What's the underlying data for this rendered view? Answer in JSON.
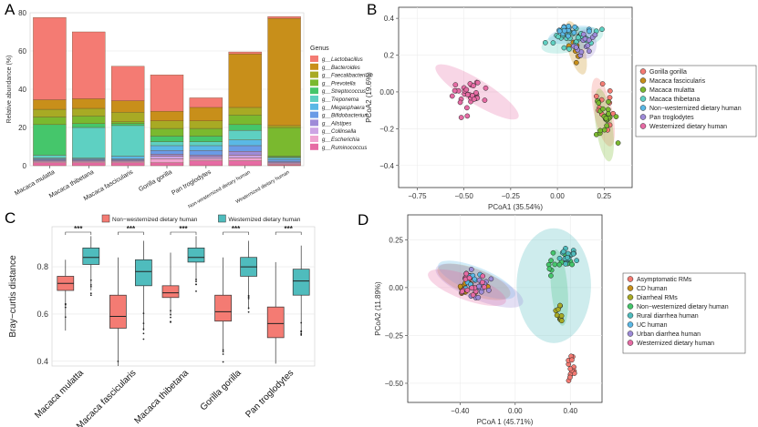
{
  "chart_data": [
    {
      "panel": "A",
      "type": "bar",
      "stacked": true,
      "ylabel": "Relative abundance (%)",
      "xlabel": "",
      "yticks": [
        "0",
        "20",
        "40",
        "60",
        "80"
      ],
      "ylim": [
        0,
        80
      ],
      "legend_title": "Genus",
      "legend_position": "right",
      "categories": [
        "Macaca mulatta",
        "Macaca thibetana",
        "Macaca fascicularis",
        "Gorilla gorilla",
        "Pan troglodytes",
        "Non-westernized dietary human",
        "Westernized dietary human"
      ],
      "series": [
        {
          "name": "g__Ruminococcus",
          "color": "#e66ba4",
          "values": [
            1.5,
            1.5,
            1.5,
            1.5,
            2.5,
            2.5,
            0.5
          ]
        },
        {
          "name": "g__Escherichia",
          "color": "#f0a3cf",
          "values": [
            0.5,
            0.5,
            0.5,
            2,
            1,
            1.5,
            0.5
          ]
        },
        {
          "name": "g__Collinsella",
          "color": "#cda4e4",
          "values": [
            0.5,
            0.5,
            0.5,
            1.5,
            1,
            1.5,
            0.5
          ]
        },
        {
          "name": "g__Alistipes",
          "color": "#9e8bd8",
          "values": [
            0.5,
            0.5,
            0.5,
            1,
            1,
            2,
            0.5
          ]
        },
        {
          "name": "g__Bifidobacterium",
          "color": "#6a9be6",
          "values": [
            0.5,
            0.5,
            0.5,
            2,
            2.5,
            3,
            1
          ]
        },
        {
          "name": "g__Megasphaera",
          "color": "#5ab8e6",
          "values": [
            0.5,
            0.5,
            1.5,
            2.5,
            2.5,
            3,
            1
          ]
        },
        {
          "name": "g__Treponema",
          "color": "#5ed0c2",
          "values": [
            1.5,
            16,
            16,
            2,
            2,
            5,
            0.5
          ]
        },
        {
          "name": "g__Streptococcus",
          "color": "#45c66b",
          "values": [
            16,
            2,
            1,
            3,
            3,
            3,
            0.5
          ]
        },
        {
          "name": "g__Prevotella",
          "color": "#7ab92f",
          "values": [
            4,
            4,
            1,
            4,
            4,
            5,
            15
          ]
        },
        {
          "name": "g__Faecalibacterium",
          "color": "#a8aa24",
          "values": [
            4,
            4,
            5,
            4,
            4,
            4,
            1
          ]
        },
        {
          "name": "g__Bacteroides",
          "color": "#c88f1a",
          "values": [
            5,
            5,
            6,
            5,
            7,
            28,
            56
          ]
        },
        {
          "name": "g__Lactobacillus",
          "color": "#f47b73",
          "values": [
            43,
            35,
            18,
            19,
            5,
            1,
            1
          ]
        }
      ]
    },
    {
      "panel": "B",
      "type": "scatter",
      "xlabel": "PCoA1  (35.54%)",
      "ylabel": "PCoA2 (19.6%)",
      "xticks": [
        -0.75,
        -0.5,
        -0.25,
        0.0,
        0.25
      ],
      "yticks": [
        0.4,
        0.2,
        0.0,
        -0.2,
        -0.4
      ],
      "xlim": [
        -0.85,
        0.4
      ],
      "ylim": [
        -0.52,
        0.46
      ],
      "legend_position": "right",
      "series": [
        {
          "name": "Gorilla gorilla",
          "color": "#f47b73",
          "center": [
            0.25,
            -0.1
          ],
          "spread": [
            0.035,
            0.13
          ],
          "n": 14,
          "ellipse": {
            "center": [
              0.245,
              -0.11
            ],
            "radii": [
              0.05,
              0.19
            ],
            "angle": -12
          }
        },
        {
          "name": "Macaca fascicularis",
          "color": "#c88f1a",
          "center": [
            0.1,
            0.25
          ],
          "spread": [
            0.04,
            0.08
          ],
          "n": 12,
          "ellipse": {
            "center": [
              0.1,
              0.24
            ],
            "radii": [
              0.045,
              0.15
            ],
            "angle": -15
          }
        },
        {
          "name": "Macaca mulatta",
          "color": "#7ab92f",
          "center": [
            0.25,
            -0.15
          ],
          "spread": [
            0.04,
            0.14
          ],
          "n": 22,
          "ellipse": {
            "center": [
              0.25,
              -0.18
            ],
            "radii": [
              0.045,
              0.2
            ],
            "angle": -8
          }
        },
        {
          "name": "Macaca thibetana",
          "color": "#5ed0c2",
          "center": [
            0.1,
            0.3
          ],
          "spread": [
            0.11,
            0.04
          ],
          "n": 34,
          "ellipse": {
            "center": [
              0.08,
              0.28
            ],
            "radii": [
              0.17,
              0.06
            ],
            "angle": -14
          }
        },
        {
          "name": "Non−westernized dietary human",
          "color": "#5ab8e6",
          "center": [
            0.07,
            0.33
          ],
          "spread": [
            0.09,
            0.03
          ],
          "n": 14,
          "ellipse": {
            "center": [
              0.08,
              0.31
            ],
            "radii": [
              0.13,
              0.045
            ],
            "angle": -10
          }
        },
        {
          "name": "Pan troglodytes",
          "color": "#9e8bd8",
          "center": [
            0.15,
            0.26
          ],
          "spread": [
            0.05,
            0.05
          ],
          "n": 14,
          "ellipse": {
            "center": [
              0.15,
              0.26
            ],
            "radii": [
              0.06,
              0.08
            ],
            "angle": 0
          }
        },
        {
          "name": "Westernized dietary human",
          "color": "#e66ba4",
          "center": [
            -0.48,
            -0.02
          ],
          "spread": [
            0.08,
            0.07
          ],
          "n": 34,
          "ellipse": {
            "center": [
              -0.43,
              0.0
            ],
            "radii": [
              0.26,
              0.065
            ],
            "angle": 32
          }
        }
      ]
    },
    {
      "panel": "C",
      "type": "box",
      "ylabel": "Bray−curtis distance",
      "yticks": [
        0.4,
        0.6,
        0.8
      ],
      "ylim": [
        0.38,
        0.97
      ],
      "legend_position": "top",
      "significance": "***",
      "categories": [
        "Macaca mulatta",
        "Macaca fascicularis",
        "Macaca thibetana",
        "Gorilla gorilla",
        "Pan troglodytes"
      ],
      "series": [
        {
          "name": "Non−westernized dietary human",
          "color": "#f47b73",
          "boxes": [
            {
              "min": 0.53,
              "q1": 0.7,
              "median": 0.73,
              "q3": 0.76,
              "max": 0.83
            },
            {
              "min": 0.36,
              "q1": 0.54,
              "median": 0.59,
              "q3": 0.68,
              "max": 0.84
            },
            {
              "min": 0.6,
              "q1": 0.67,
              "median": 0.69,
              "q3": 0.72,
              "max": 0.86
            },
            {
              "min": 0.44,
              "q1": 0.57,
              "median": 0.61,
              "q3": 0.68,
              "max": 0.84
            },
            {
              "min": 0.39,
              "q1": 0.5,
              "median": 0.56,
              "q3": 0.63,
              "max": 0.82
            }
          ]
        },
        {
          "name": "Westernized dietary human",
          "color": "#4fbcbd",
          "boxes": [
            {
              "min": 0.7,
              "q1": 0.81,
              "median": 0.84,
              "q3": 0.88,
              "max": 0.93
            },
            {
              "min": 0.53,
              "q1": 0.72,
              "median": 0.78,
              "q3": 0.83,
              "max": 0.91
            },
            {
              "min": 0.74,
              "q1": 0.82,
              "median": 0.84,
              "q3": 0.88,
              "max": 0.93
            },
            {
              "min": 0.62,
              "q1": 0.76,
              "median": 0.8,
              "q3": 0.84,
              "max": 0.91
            },
            {
              "min": 0.52,
              "q1": 0.68,
              "median": 0.74,
              "q3": 0.79,
              "max": 0.89
            }
          ]
        }
      ]
    },
    {
      "panel": "D",
      "type": "scatter",
      "xlabel": "PCoA 1  (45.71%)",
      "ylabel": "PCoA2 (11.89%)",
      "xticks": [
        -0.4,
        0.0,
        0.4
      ],
      "yticks": [
        0.25,
        0.0,
        -0.25,
        -0.5
      ],
      "xlim": [
        -0.78,
        0.63
      ],
      "ylim": [
        -0.6,
        0.38
      ],
      "legend_position": "right",
      "series": [
        {
          "name": "Asymptomatic RMs",
          "color": "#f47b73",
          "center": [
            0.4,
            -0.4
          ],
          "spread": [
            0.025,
            0.06
          ],
          "n": 14,
          "ellipse": null
        },
        {
          "name": "CD human",
          "color": "#c88f1a",
          "center": [
            -0.33,
            0.02
          ],
          "spread": [
            0.08,
            0.05
          ],
          "n": 16,
          "ellipse": {
            "center": [
              -0.3,
              0.03
            ],
            "radii": [
              0.28,
              0.07
            ],
            "angle": 20
          }
        },
        {
          "name": "Diarrheal RMs",
          "color": "#a8aa24",
          "center": [
            0.33,
            -0.15
          ],
          "spread": [
            0.03,
            0.06
          ],
          "n": 10,
          "ellipse": null
        },
        {
          "name": "Non−westernized dietary human",
          "color": "#45c66b",
          "center": [
            0.32,
            0.11
          ],
          "spread": [
            0.08,
            0.06
          ],
          "n": 14,
          "ellipse": {
            "center": [
              0.32,
              0.0
            ],
            "radii": [
              0.06,
              0.2
            ],
            "angle": -5
          }
        },
        {
          "name": "Rural diarrhea human",
          "color": "#4fbcbd",
          "center": [
            0.38,
            0.16
          ],
          "spread": [
            0.05,
            0.04
          ],
          "n": 20,
          "ellipse": {
            "center": [
              0.28,
              0.01
            ],
            "radii": [
              0.27,
              0.3
            ],
            "angle": 0
          }
        },
        {
          "name": "UC human",
          "color": "#5ab8e6",
          "center": [
            -0.3,
            0.03
          ],
          "spread": [
            0.07,
            0.05
          ],
          "n": 12,
          "ellipse": {
            "center": [
              -0.28,
              0.04
            ],
            "radii": [
              0.3,
              0.065
            ],
            "angle": 22
          }
        },
        {
          "name": "Urban diarrhea human",
          "color": "#9e8bd8",
          "center": [
            -0.25,
            0.0
          ],
          "spread": [
            0.12,
            0.06
          ],
          "n": 14,
          "ellipse": {
            "center": [
              -0.26,
              0.01
            ],
            "radii": [
              0.34,
              0.075
            ],
            "angle": 22
          }
        },
        {
          "name": "Westernized dietary human",
          "color": "#e66ba4",
          "center": [
            -0.33,
            0.01
          ],
          "spread": [
            0.09,
            0.05
          ],
          "n": 16,
          "ellipse": {
            "center": [
              -0.35,
              0.0
            ],
            "radii": [
              0.3,
              0.065
            ],
            "angle": 20
          }
        }
      ]
    }
  ]
}
